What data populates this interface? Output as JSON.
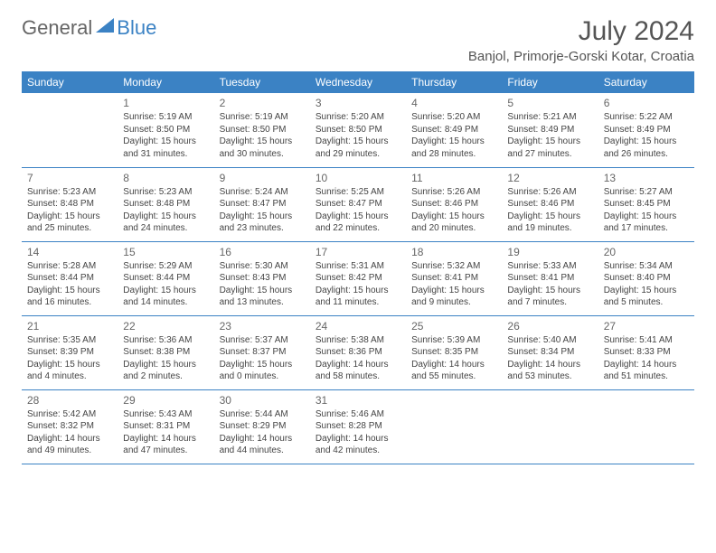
{
  "logo": {
    "text1": "General",
    "text2": "Blue"
  },
  "title": {
    "monthYear": "July 2024",
    "location": "Banjol, Primorje-Gorski Kotar, Croatia"
  },
  "colors": {
    "headerBg": "#3b82c4",
    "headerText": "#ffffff",
    "border": "#3b82c4",
    "text": "#444444"
  },
  "dayHeaders": [
    "Sunday",
    "Monday",
    "Tuesday",
    "Wednesday",
    "Thursday",
    "Friday",
    "Saturday"
  ],
  "weeks": [
    [
      null,
      {
        "d": "1",
        "sr": "5:19 AM",
        "ss": "8:50 PM",
        "dl": "15 hours and 31 minutes."
      },
      {
        "d": "2",
        "sr": "5:19 AM",
        "ss": "8:50 PM",
        "dl": "15 hours and 30 minutes."
      },
      {
        "d": "3",
        "sr": "5:20 AM",
        "ss": "8:50 PM",
        "dl": "15 hours and 29 minutes."
      },
      {
        "d": "4",
        "sr": "5:20 AM",
        "ss": "8:49 PM",
        "dl": "15 hours and 28 minutes."
      },
      {
        "d": "5",
        "sr": "5:21 AM",
        "ss": "8:49 PM",
        "dl": "15 hours and 27 minutes."
      },
      {
        "d": "6",
        "sr": "5:22 AM",
        "ss": "8:49 PM",
        "dl": "15 hours and 26 minutes."
      }
    ],
    [
      {
        "d": "7",
        "sr": "5:23 AM",
        "ss": "8:48 PM",
        "dl": "15 hours and 25 minutes."
      },
      {
        "d": "8",
        "sr": "5:23 AM",
        "ss": "8:48 PM",
        "dl": "15 hours and 24 minutes."
      },
      {
        "d": "9",
        "sr": "5:24 AM",
        "ss": "8:47 PM",
        "dl": "15 hours and 23 minutes."
      },
      {
        "d": "10",
        "sr": "5:25 AM",
        "ss": "8:47 PM",
        "dl": "15 hours and 22 minutes."
      },
      {
        "d": "11",
        "sr": "5:26 AM",
        "ss": "8:46 PM",
        "dl": "15 hours and 20 minutes."
      },
      {
        "d": "12",
        "sr": "5:26 AM",
        "ss": "8:46 PM",
        "dl": "15 hours and 19 minutes."
      },
      {
        "d": "13",
        "sr": "5:27 AM",
        "ss": "8:45 PM",
        "dl": "15 hours and 17 minutes."
      }
    ],
    [
      {
        "d": "14",
        "sr": "5:28 AM",
        "ss": "8:44 PM",
        "dl": "15 hours and 16 minutes."
      },
      {
        "d": "15",
        "sr": "5:29 AM",
        "ss": "8:44 PM",
        "dl": "15 hours and 14 minutes."
      },
      {
        "d": "16",
        "sr": "5:30 AM",
        "ss": "8:43 PM",
        "dl": "15 hours and 13 minutes."
      },
      {
        "d": "17",
        "sr": "5:31 AM",
        "ss": "8:42 PM",
        "dl": "15 hours and 11 minutes."
      },
      {
        "d": "18",
        "sr": "5:32 AM",
        "ss": "8:41 PM",
        "dl": "15 hours and 9 minutes."
      },
      {
        "d": "19",
        "sr": "5:33 AM",
        "ss": "8:41 PM",
        "dl": "15 hours and 7 minutes."
      },
      {
        "d": "20",
        "sr": "5:34 AM",
        "ss": "8:40 PM",
        "dl": "15 hours and 5 minutes."
      }
    ],
    [
      {
        "d": "21",
        "sr": "5:35 AM",
        "ss": "8:39 PM",
        "dl": "15 hours and 4 minutes."
      },
      {
        "d": "22",
        "sr": "5:36 AM",
        "ss": "8:38 PM",
        "dl": "15 hours and 2 minutes."
      },
      {
        "d": "23",
        "sr": "5:37 AM",
        "ss": "8:37 PM",
        "dl": "15 hours and 0 minutes."
      },
      {
        "d": "24",
        "sr": "5:38 AM",
        "ss": "8:36 PM",
        "dl": "14 hours and 58 minutes."
      },
      {
        "d": "25",
        "sr": "5:39 AM",
        "ss": "8:35 PM",
        "dl": "14 hours and 55 minutes."
      },
      {
        "d": "26",
        "sr": "5:40 AM",
        "ss": "8:34 PM",
        "dl": "14 hours and 53 minutes."
      },
      {
        "d": "27",
        "sr": "5:41 AM",
        "ss": "8:33 PM",
        "dl": "14 hours and 51 minutes."
      }
    ],
    [
      {
        "d": "28",
        "sr": "5:42 AM",
        "ss": "8:32 PM",
        "dl": "14 hours and 49 minutes."
      },
      {
        "d": "29",
        "sr": "5:43 AM",
        "ss": "8:31 PM",
        "dl": "14 hours and 47 minutes."
      },
      {
        "d": "30",
        "sr": "5:44 AM",
        "ss": "8:29 PM",
        "dl": "14 hours and 44 minutes."
      },
      {
        "d": "31",
        "sr": "5:46 AM",
        "ss": "8:28 PM",
        "dl": "14 hours and 42 minutes."
      },
      null,
      null,
      null
    ]
  ],
  "labels": {
    "sunrise": "Sunrise: ",
    "sunset": "Sunset: ",
    "daylight": "Daylight: "
  }
}
